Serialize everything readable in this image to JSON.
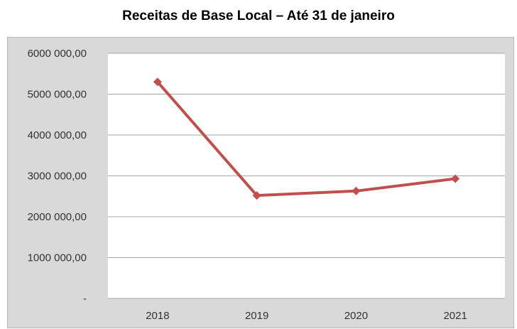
{
  "chart_data": {
    "type": "line",
    "title": "Receitas de Base Local – Até 31 de janeiro",
    "categories": [
      "2018",
      "2019",
      "2020",
      "2021"
    ],
    "series": [
      {
        "values": [
          5300000,
          2520000,
          2630000,
          2930000
        ],
        "color": "#c0504d"
      }
    ],
    "y_tick_labels": [
      "-",
      "1000 000,00",
      "2000 000,00",
      "3000 000,00",
      "4000 000,00",
      "5000 000,00",
      "6000 000,00"
    ],
    "y_ticks": [
      0,
      1000000,
      2000000,
      3000000,
      4000000,
      5000000,
      6000000
    ],
    "ylim": [
      0,
      6000000
    ],
    "grid": true,
    "legend": "none",
    "plot_background": "#ffffff",
    "frame_background": "#d9d9d9"
  }
}
